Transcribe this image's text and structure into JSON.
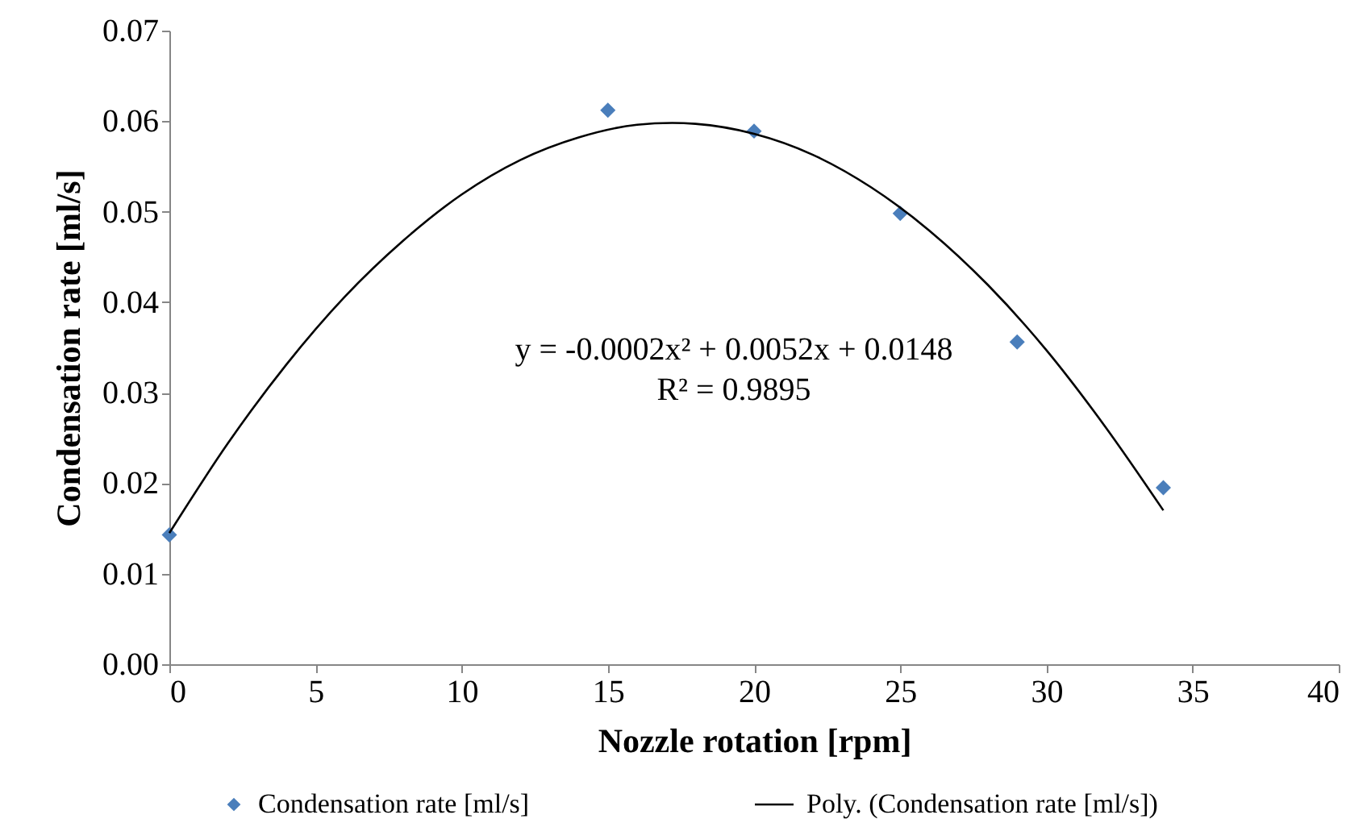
{
  "chart_data": {
    "type": "scatter",
    "xlabel": "Nozzle rotation [rpm]",
    "ylabel": "Condensation rate [ml/s]",
    "x": [
      0,
      15,
      20,
      25,
      29,
      34
    ],
    "series": [
      {
        "name": "Condensation rate [ml/s]",
        "color": "#4a7ebb",
        "type": "scatter",
        "marker": "diamond",
        "values": [
          0.0143,
          0.0612,
          0.0589,
          0.0498,
          0.0356,
          0.0195
        ]
      },
      {
        "name": "Poly. (Condensation rate [ml/s])",
        "color": "#000000",
        "type": "line",
        "marker": "none",
        "line_style": "solid",
        "x": [
          0,
          2,
          4,
          6,
          8,
          10,
          12,
          14,
          16,
          17.2,
          18,
          20,
          22,
          24,
          26,
          28,
          30,
          32,
          34
        ],
        "values": [
          0.0145,
          0.0244,
          0.0331,
          0.0406,
          0.0468,
          0.0519,
          0.0557,
          0.0582,
          0.0596,
          0.0598,
          0.0597,
          0.0586,
          0.0563,
          0.0527,
          0.0479,
          0.0419,
          0.0347,
          0.0263,
          0.017
        ]
      }
    ],
    "xlim": [
      0,
      40
    ],
    "xticks": [
      0,
      5,
      10,
      15,
      20,
      25,
      30,
      35,
      40
    ],
    "ylim": [
      0,
      0.07
    ],
    "yticks": [
      {
        "value": 0,
        "label": "0.00"
      },
      {
        "value": 0.01,
        "label": "0.01"
      },
      {
        "value": 0.02,
        "label": "0.02"
      },
      {
        "value": 0.03,
        "label": "0.03"
      },
      {
        "value": 0.04,
        "label": "0.04"
      },
      {
        "value": 0.05,
        "label": "0.05"
      },
      {
        "value": 0.06,
        "label": "0.06"
      },
      {
        "value": 0.07,
        "label": "0.07"
      }
    ],
    "grid": false,
    "legend": "bottom",
    "annotations": [
      "y = -0.0002x² + 0.0052x + 0.0148",
      "R² = 0.9895"
    ]
  }
}
